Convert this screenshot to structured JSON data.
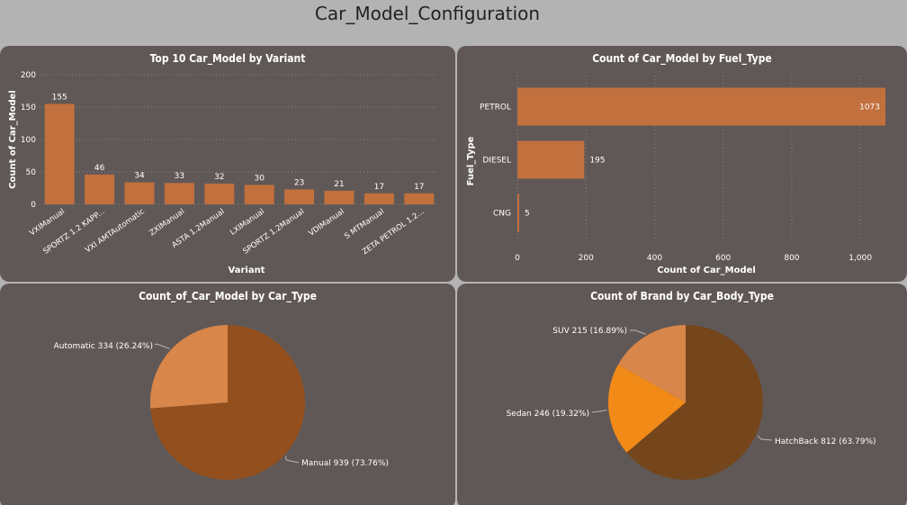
{
  "page": {
    "title": "Car_Model_Configuration"
  },
  "colors": {
    "bar": "#c2703d",
    "pie_manual": "#93501e",
    "pie_automatic": "#d8864a",
    "pie_hatchback": "#75451b",
    "pie_sedan": "#f28a17",
    "pie_suv": "#d8864a",
    "panel_bg": "#605856",
    "page_bg": "#b3b3b3"
  },
  "chart_data": [
    {
      "type": "bar",
      "title": "Top 10 Car_Model by Variant",
      "xlabel": "Variant",
      "ylabel": "Count of Car_Model",
      "categories": [
        "VXIManual",
        "SPORTZ 1.2 KAPP...",
        "VXI AMTAutomatic",
        "ZXIManual",
        "ASTA 1.2Manual",
        "LXIManual",
        "SPORTZ 1.2Manual",
        "VDIManual",
        "S MTManual",
        "ZETA PETROL 1.2..."
      ],
      "values": [
        155,
        46,
        34,
        33,
        32,
        30,
        23,
        21,
        17,
        17
      ],
      "ylim": [
        0,
        200
      ],
      "yticks": [
        "0",
        "50",
        "100",
        "150",
        "200"
      ],
      "grid": true
    },
    {
      "type": "bar",
      "orientation": "horizontal",
      "title": "Count of Car_Model by Fuel_Type",
      "xlabel": "Count of Car_Model",
      "ylabel": "Fuel_Type",
      "categories": [
        "PETROL",
        "DIESEL",
        "CNG"
      ],
      "values": [
        1073,
        195,
        5
      ],
      "data_labels": [
        "1073",
        "195",
        "5"
      ],
      "xlim": [
        0,
        1073
      ],
      "xticks": [
        "0",
        "200",
        "400",
        "600",
        "800",
        "1,000"
      ],
      "grid": true
    },
    {
      "type": "pie",
      "title": "Count_of_Car_Model by Car_Type",
      "slices": [
        {
          "label": "Manual",
          "value": 939,
          "data_label": "Manual 939 (73.76%)"
        },
        {
          "label": "Automatic",
          "value": 334,
          "data_label": "Automatic 334 (26.24%)"
        }
      ]
    },
    {
      "type": "pie",
      "title": "Count of Brand by Car_Body_Type",
      "slices": [
        {
          "label": "HatchBack",
          "value": 812,
          "data_label": "HatchBack 812 (63.79%)"
        },
        {
          "label": "Sedan",
          "value": 246,
          "data_label": "Sedan 246 (19.32%)"
        },
        {
          "label": "SUV",
          "value": 215,
          "data_label": "SUV 215 (16.89%)"
        }
      ]
    }
  ]
}
